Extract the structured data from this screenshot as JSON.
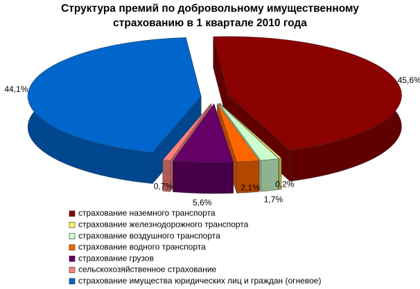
{
  "chart_data": {
    "type": "pie3d",
    "title": "Структура премий по добровольному имущественному страхованию в 1 квартале 2010 года",
    "categories": [
      "страхование наземного транспорта",
      "страхование железнодорожного транспорта",
      "страхование воздушного транспорта",
      "страхование водного транспорта",
      "страхование грузов",
      "сельскохозяйственное страхование",
      "страхование имущества юридических лиц и граждан (огневое)"
    ],
    "values": [
      45.6,
      0.2,
      1.7,
      2.1,
      5.6,
      0.7,
      44.1
    ],
    "value_labels": [
      "45,6%",
      "0,2%",
      "1,7%",
      "2,1%",
      "5,6%",
      "0,7%",
      "44,1%"
    ],
    "colors": [
      "#8b0000",
      "#ffff66",
      "#ccffcc",
      "#ff6600",
      "#660066",
      "#ff8080",
      "#0066cc"
    ],
    "legend": "bottom"
  }
}
